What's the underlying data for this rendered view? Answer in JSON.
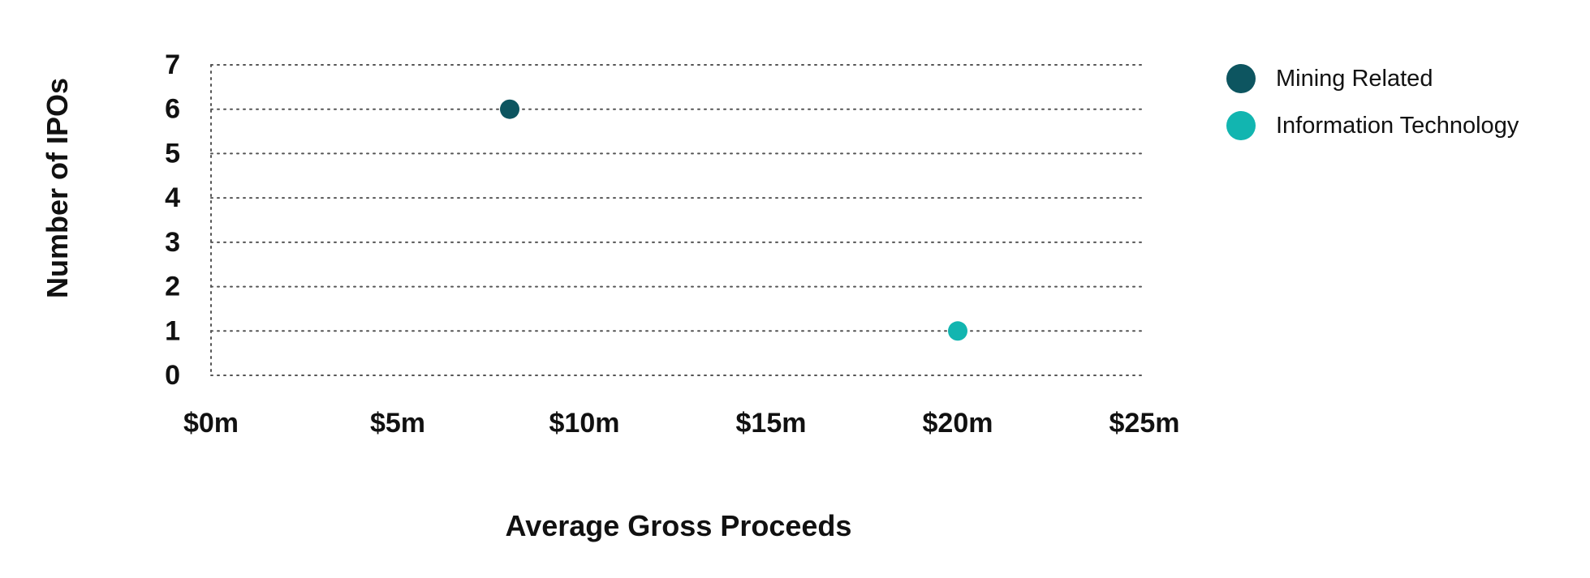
{
  "chart_data": {
    "type": "scatter",
    "title": "",
    "xlabel": "Average Gross Proceeds",
    "ylabel": "Number of IPOs",
    "xlim": [
      0,
      25
    ],
    "ylim": [
      0,
      7
    ],
    "x_ticks": [
      0,
      5,
      10,
      15,
      20,
      25
    ],
    "x_tick_labels": [
      "$0m",
      "$5m",
      "$10m",
      "$15m",
      "$20m",
      "$25m"
    ],
    "y_ticks": [
      0,
      1,
      2,
      3,
      4,
      5,
      6,
      7
    ],
    "y_tick_labels": [
      "0",
      "1",
      "2",
      "3",
      "4",
      "5",
      "6",
      "7"
    ],
    "grid": true,
    "legend_position": "top-right",
    "series": [
      {
        "name": "Mining Related",
        "color": "#0d5560",
        "points": [
          {
            "x": 8,
            "y": 6
          }
        ]
      },
      {
        "name": "Information Technology",
        "color": "#12b5b0",
        "points": [
          {
            "x": 20,
            "y": 1
          }
        ]
      }
    ]
  }
}
